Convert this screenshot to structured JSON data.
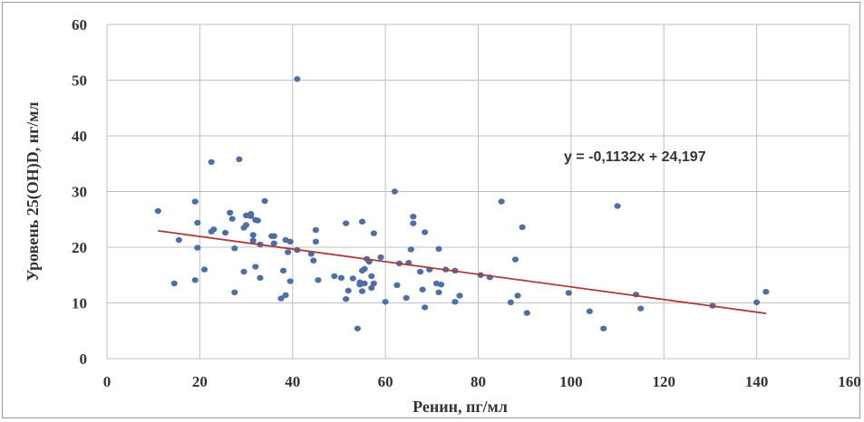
{
  "chart_data": {
    "type": "scatter",
    "xlabel": "Ренин, пг/мл",
    "ylabel": "Уровень 25(OH)D, нг/мл",
    "xlim": [
      0,
      160
    ],
    "ylim": [
      0,
      60
    ],
    "xticks": [
      0,
      20,
      40,
      60,
      80,
      100,
      120,
      140,
      160
    ],
    "yticks": [
      0,
      10,
      20,
      30,
      40,
      50,
      60
    ],
    "grid": true,
    "legend": "none",
    "colors": {
      "points": "#4f6ea8",
      "trendline": "#b03a3a",
      "grid": "#bfbfbf"
    },
    "trendline": {
      "equation": "y = -0,1132x + 24,197",
      "slope": -0.1132,
      "intercept": 24.197,
      "x_range": [
        11,
        142
      ]
    },
    "points": [
      [
        11,
        26.5
      ],
      [
        14.5,
        13.5
      ],
      [
        15.5,
        21.3
      ],
      [
        19,
        28.2
      ],
      [
        19,
        14.1
      ],
      [
        19.5,
        24.4
      ],
      [
        19.5,
        19.9
      ],
      [
        21,
        16
      ],
      [
        22.5,
        35.3
      ],
      [
        22.5,
        22.8
      ],
      [
        23,
        23.2
      ],
      [
        25.5,
        22.6
      ],
      [
        26.5,
        26.2
      ],
      [
        27,
        25.1
      ],
      [
        27.5,
        19.8
      ],
      [
        27.5,
        11.9
      ],
      [
        28.5,
        35.8
      ],
      [
        29.5,
        23.5
      ],
      [
        29.5,
        15.6
      ],
      [
        30,
        25.7
      ],
      [
        30,
        24
      ],
      [
        31,
        26
      ],
      [
        31,
        25.6
      ],
      [
        31.5,
        21.2
      ],
      [
        31.5,
        22.2
      ],
      [
        32,
        16.5
      ],
      [
        32,
        24.9
      ],
      [
        32.5,
        24.8
      ],
      [
        33,
        20.5
      ],
      [
        33,
        14.5
      ],
      [
        34,
        28.3
      ],
      [
        35.5,
        22
      ],
      [
        36,
        22
      ],
      [
        36,
        20.7
      ],
      [
        37.5,
        10.8
      ],
      [
        38,
        15.8
      ],
      [
        38.5,
        11.4
      ],
      [
        38.5,
        21.3
      ],
      [
        39,
        19.1
      ],
      [
        39.5,
        21
      ],
      [
        39.5,
        13.9
      ],
      [
        41,
        50.2
      ],
      [
        41,
        19.5
      ],
      [
        44,
        18.8
      ],
      [
        44.5,
        17.6
      ],
      [
        45,
        23.1
      ],
      [
        45,
        21
      ],
      [
        45.5,
        14.1
      ],
      [
        49,
        14.8
      ],
      [
        50.5,
        14.5
      ],
      [
        51.5,
        24.3
      ],
      [
        51.5,
        10.7
      ],
      [
        52,
        12.2
      ],
      [
        53,
        14.4
      ],
      [
        54,
        5.4
      ],
      [
        54.5,
        13.3
      ],
      [
        54.5,
        13.7
      ],
      [
        55,
        24.6
      ],
      [
        55,
        15.8
      ],
      [
        55,
        12.1
      ],
      [
        55.5,
        13.5
      ],
      [
        55.5,
        16.1
      ],
      [
        56,
        17.9
      ],
      [
        56.5,
        17.4
      ],
      [
        57,
        14.8
      ],
      [
        57,
        12.7
      ],
      [
        57.5,
        22.5
      ],
      [
        57.5,
        13.5
      ],
      [
        59,
        18.2
      ],
      [
        60,
        10.2
      ],
      [
        62,
        30
      ],
      [
        62.5,
        13.2
      ],
      [
        63,
        17.1
      ],
      [
        64.5,
        10.9
      ],
      [
        65,
        17.2
      ],
      [
        65.5,
        19.6
      ],
      [
        66,
        25.5
      ],
      [
        66,
        24.3
      ],
      [
        67.5,
        15.6
      ],
      [
        68,
        12.4
      ],
      [
        68.5,
        22.7
      ],
      [
        68.5,
        9.2
      ],
      [
        69.5,
        16
      ],
      [
        71,
        13.5
      ],
      [
        71.5,
        11.9
      ],
      [
        71.5,
        19.7
      ],
      [
        72,
        13.3
      ],
      [
        73,
        16
      ],
      [
        75,
        10.2
      ],
      [
        75,
        15.8
      ],
      [
        76,
        11.3
      ],
      [
        80.5,
        15
      ],
      [
        82.5,
        14.6
      ],
      [
        85,
        28.2
      ],
      [
        87,
        10.1
      ],
      [
        88,
        17.8
      ],
      [
        88.5,
        11.3
      ],
      [
        89.5,
        23.6
      ],
      [
        90.5,
        8.2
      ],
      [
        99.5,
        11.8
      ],
      [
        104,
        8.5
      ],
      [
        107,
        5.4
      ],
      [
        110,
        27.4
      ],
      [
        114,
        11.5
      ],
      [
        115,
        9
      ],
      [
        130.5,
        9.5
      ],
      [
        140,
        10.1
      ],
      [
        142,
        12
      ]
    ]
  }
}
